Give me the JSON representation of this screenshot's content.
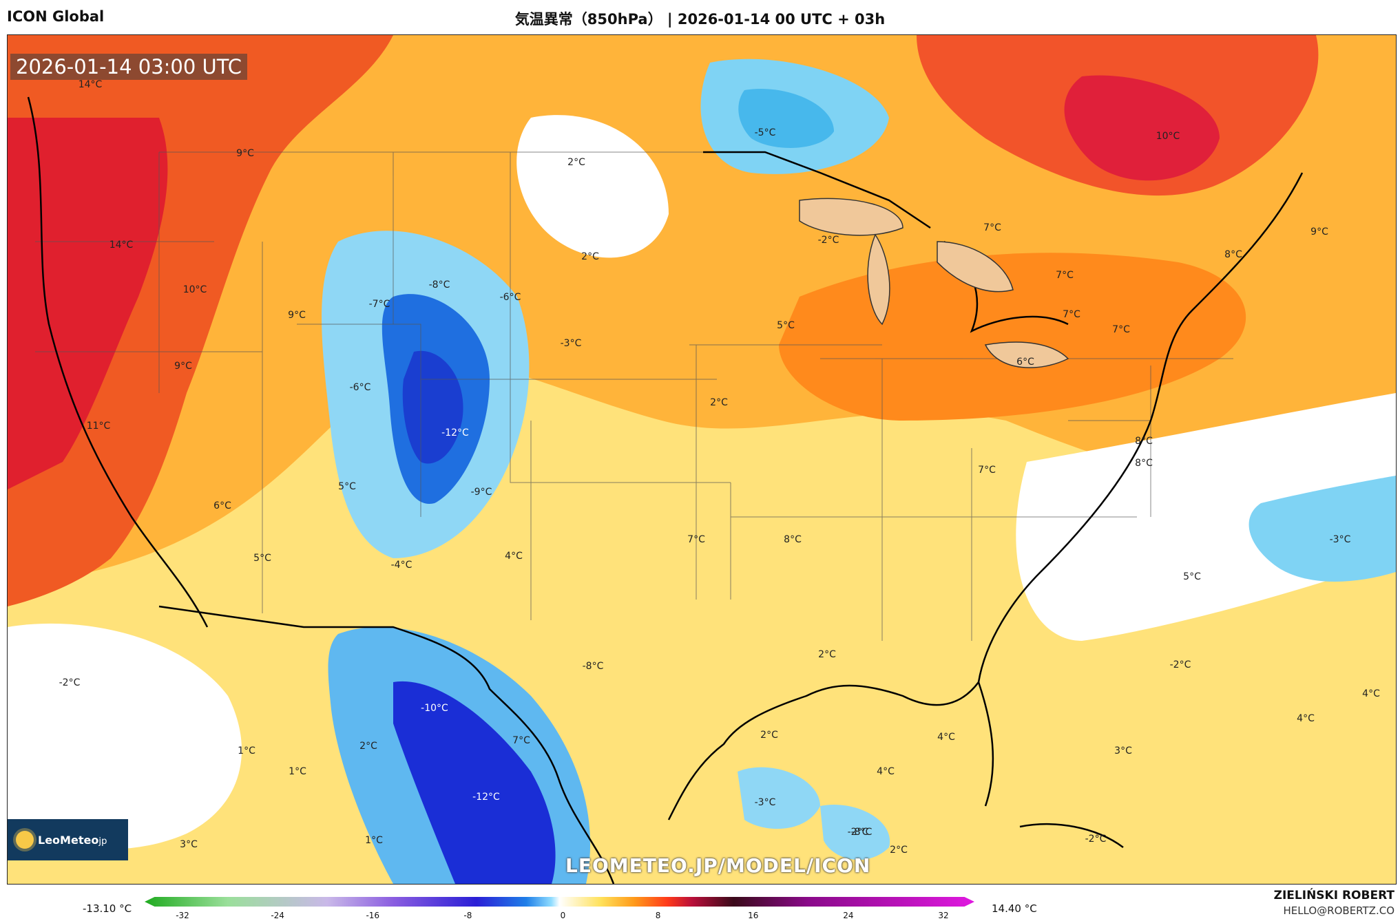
{
  "header": {
    "model": "ICON Global",
    "title": "気温異常（850hPa） | 2026-01-14 00 UTC + 03h"
  },
  "map": {
    "valid_time": "2026-01-14 03:00 UTC",
    "watermark": "LEOMETEO.JP/MODEL/ICON",
    "logo_text": "LeoMeteo",
    "logo_suffix": "jp",
    "labels": [
      {
        "t": "14°C"
      },
      {
        "t": "9°C"
      },
      {
        "t": "14°C"
      },
      {
        "t": "10°C"
      },
      {
        "t": "9°C"
      },
      {
        "t": "9°C"
      },
      {
        "t": "11°C"
      },
      {
        "t": "6°C"
      },
      {
        "t": "5°C"
      },
      {
        "t": "2°C"
      },
      {
        "t": "-5°C"
      },
      {
        "t": "10°C"
      },
      {
        "t": "7°C"
      },
      {
        "t": "-2°C"
      },
      {
        "t": "7°C"
      },
      {
        "t": "9°C"
      },
      {
        "t": "8°C"
      },
      {
        "t": "2°C"
      },
      {
        "t": "-8°C"
      },
      {
        "t": "-7°C"
      },
      {
        "t": "-6°C"
      },
      {
        "t": "-3°C"
      },
      {
        "t": "5°C"
      },
      {
        "t": "7°C"
      },
      {
        "t": "7°C"
      },
      {
        "t": "6°C"
      },
      {
        "t": "-6°C"
      },
      {
        "t": "-12°C"
      },
      {
        "t": "2°C"
      },
      {
        "t": "5°C"
      },
      {
        "t": "-9°C"
      },
      {
        "t": "7°C"
      },
      {
        "t": "8°C"
      },
      {
        "t": "4°C"
      },
      {
        "t": "7°C"
      },
      {
        "t": "8°C"
      },
      {
        "t": "5°C"
      },
      {
        "t": "-4°C"
      },
      {
        "t": "-3°C"
      },
      {
        "t": "-2°C"
      },
      {
        "t": "-8°C"
      },
      {
        "t": "2°C"
      },
      {
        "t": "-2°C"
      },
      {
        "t": "4°C"
      },
      {
        "t": "-10°C"
      },
      {
        "t": "7°C"
      },
      {
        "t": "2°C"
      },
      {
        "t": "4°C"
      },
      {
        "t": "4°C"
      },
      {
        "t": "1°C"
      },
      {
        "t": "2°C"
      },
      {
        "t": "1°C"
      },
      {
        "t": "-3°C"
      },
      {
        "t": "4°C"
      },
      {
        "t": "-12°C"
      },
      {
        "t": "3°C"
      },
      {
        "t": "-8°C"
      },
      {
        "t": "1°C"
      },
      {
        "t": "3°C"
      },
      {
        "t": "-2°C"
      },
      {
        "t": "2°C"
      },
      {
        "t": "-2°C"
      },
      {
        "t": "8°C"
      }
    ]
  },
  "colorbar": {
    "min_label": "-13.10 °C",
    "max_label": "14.40 °C",
    "ticks": [
      "-32",
      "-24",
      "-16",
      "-8",
      "0",
      "8",
      "16",
      "24",
      "32"
    ]
  },
  "credit": {
    "name": "ZIELIŃSKI ROBERT",
    "email": "HELLO@ROBERTZ.CO"
  }
}
